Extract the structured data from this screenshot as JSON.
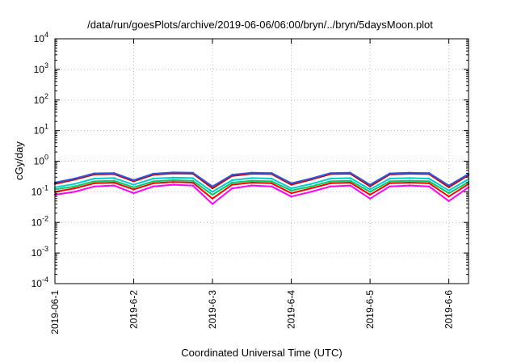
{
  "chart_data": {
    "type": "line",
    "title": "/data/run/goesPlots/archive/2019-06-06/06:00/bryn/../bryn/5daysMoon.plot",
    "xlabel": "Coordinated Universal Time (UTC)",
    "ylabel": "cGy/day",
    "yscale": "log",
    "ylim": [
      0.0001,
      10000
    ],
    "xlim": [
      "2019-06-01T00:00",
      "2019-06-06T06:00"
    ],
    "grid": true,
    "x_ticks": [
      {
        "date": "2019-06-01",
        "label": "2019-06-1"
      },
      {
        "date": "2019-06-02",
        "label": "2019-6-2"
      },
      {
        "date": "2019-06-03",
        "label": "2019-6-3"
      },
      {
        "date": "2019-06-04",
        "label": "2019-6-4"
      },
      {
        "date": "2019-06-05",
        "label": "2019-6-5"
      },
      {
        "date": "2019-06-06",
        "label": "2019-6-6"
      }
    ],
    "y_ticks": [
      {
        "value": 0.0001,
        "exp": "-4"
      },
      {
        "value": 0.001,
        "exp": "-3"
      },
      {
        "value": 0.01,
        "exp": "-2"
      },
      {
        "value": 0.1,
        "exp": "-1"
      },
      {
        "value": 1,
        "exp": "0"
      },
      {
        "value": 10,
        "exp": "1"
      },
      {
        "value": 100,
        "exp": "2"
      },
      {
        "value": 1000,
        "exp": "3"
      },
      {
        "value": 10000,
        "exp": "4"
      }
    ],
    "x": [
      "2019-06-01T00:00",
      "2019-06-01T06:00",
      "2019-06-01T12:00",
      "2019-06-01T18:00",
      "2019-06-02T00:00",
      "2019-06-02T06:00",
      "2019-06-02T12:00",
      "2019-06-02T18:00",
      "2019-06-03T00:00",
      "2019-06-03T06:00",
      "2019-06-03T12:00",
      "2019-06-03T18:00",
      "2019-06-04T00:00",
      "2019-06-04T06:00",
      "2019-06-04T12:00",
      "2019-06-04T18:00",
      "2019-06-05T00:00",
      "2019-06-05T06:00",
      "2019-06-05T12:00",
      "2019-06-05T18:00",
      "2019-06-06T00:00",
      "2019-06-06T06:00"
    ],
    "series": [
      {
        "color": "#ff00ff",
        "values": [
          0.08,
          0.1,
          0.15,
          0.16,
          0.09,
          0.15,
          0.17,
          0.16,
          0.04,
          0.13,
          0.16,
          0.15,
          0.07,
          0.1,
          0.15,
          0.16,
          0.06,
          0.15,
          0.16,
          0.15,
          0.05,
          0.14
        ]
      },
      {
        "color": "#ff0000",
        "values": [
          0.1,
          0.13,
          0.19,
          0.2,
          0.12,
          0.19,
          0.21,
          0.2,
          0.06,
          0.17,
          0.2,
          0.19,
          0.09,
          0.13,
          0.19,
          0.2,
          0.08,
          0.19,
          0.2,
          0.19,
          0.07,
          0.18
        ]
      },
      {
        "color": "#00cc66",
        "values": [
          0.12,
          0.15,
          0.22,
          0.23,
          0.14,
          0.22,
          0.24,
          0.23,
          0.08,
          0.2,
          0.23,
          0.22,
          0.11,
          0.15,
          0.22,
          0.23,
          0.1,
          0.22,
          0.23,
          0.22,
          0.09,
          0.21
        ]
      },
      {
        "color": "#00cccc",
        "values": [
          0.14,
          0.18,
          0.27,
          0.28,
          0.17,
          0.27,
          0.29,
          0.28,
          0.1,
          0.24,
          0.28,
          0.27,
          0.13,
          0.18,
          0.27,
          0.28,
          0.12,
          0.27,
          0.28,
          0.27,
          0.11,
          0.26
        ]
      },
      {
        "color": "#cc0000",
        "values": [
          0.18,
          0.25,
          0.37,
          0.38,
          0.22,
          0.36,
          0.4,
          0.39,
          0.13,
          0.33,
          0.39,
          0.38,
          0.17,
          0.25,
          0.38,
          0.39,
          0.15,
          0.37,
          0.39,
          0.38,
          0.14,
          0.35
        ]
      },
      {
        "color": "#3355dd",
        "values": [
          0.2,
          0.27,
          0.4,
          0.41,
          0.24,
          0.39,
          0.43,
          0.42,
          0.15,
          0.36,
          0.42,
          0.41,
          0.19,
          0.27,
          0.41,
          0.42,
          0.17,
          0.4,
          0.42,
          0.41,
          0.16,
          0.38
        ]
      }
    ]
  }
}
